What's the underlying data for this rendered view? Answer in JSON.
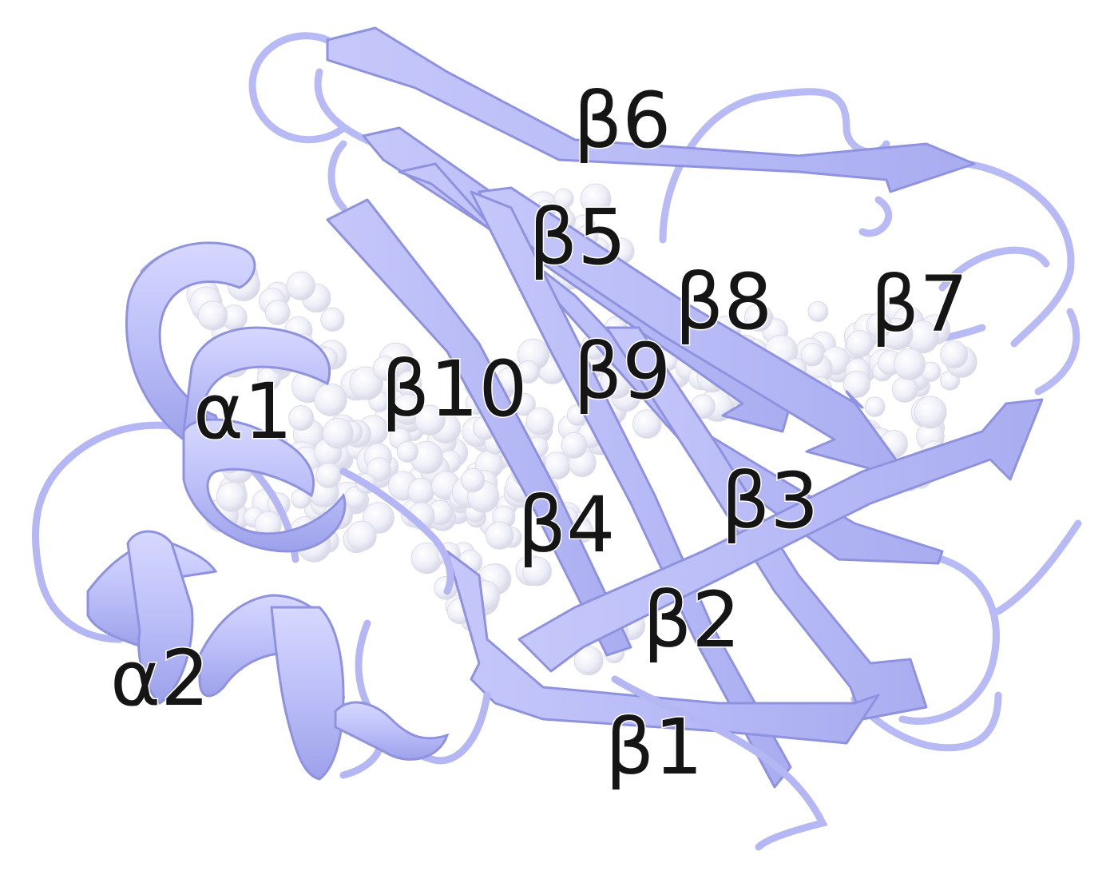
{
  "colors": {
    "ribbon": "#bcbff8",
    "ribbon_dark": "#8f93e0",
    "ribbon_light": "#dcdeff",
    "ligand": "#eeeef8",
    "ligand_shade": "#d4d4e4",
    "label": "#151515"
  },
  "labels": {
    "b6": "β6",
    "b5": "β5",
    "b8": "β8",
    "b7": "β7",
    "a1": "α1",
    "b10": "β10",
    "b9": "β9",
    "b4": "β4",
    "b3": "β3",
    "b2": "β2",
    "a2": "α2",
    "b1": "β1"
  }
}
